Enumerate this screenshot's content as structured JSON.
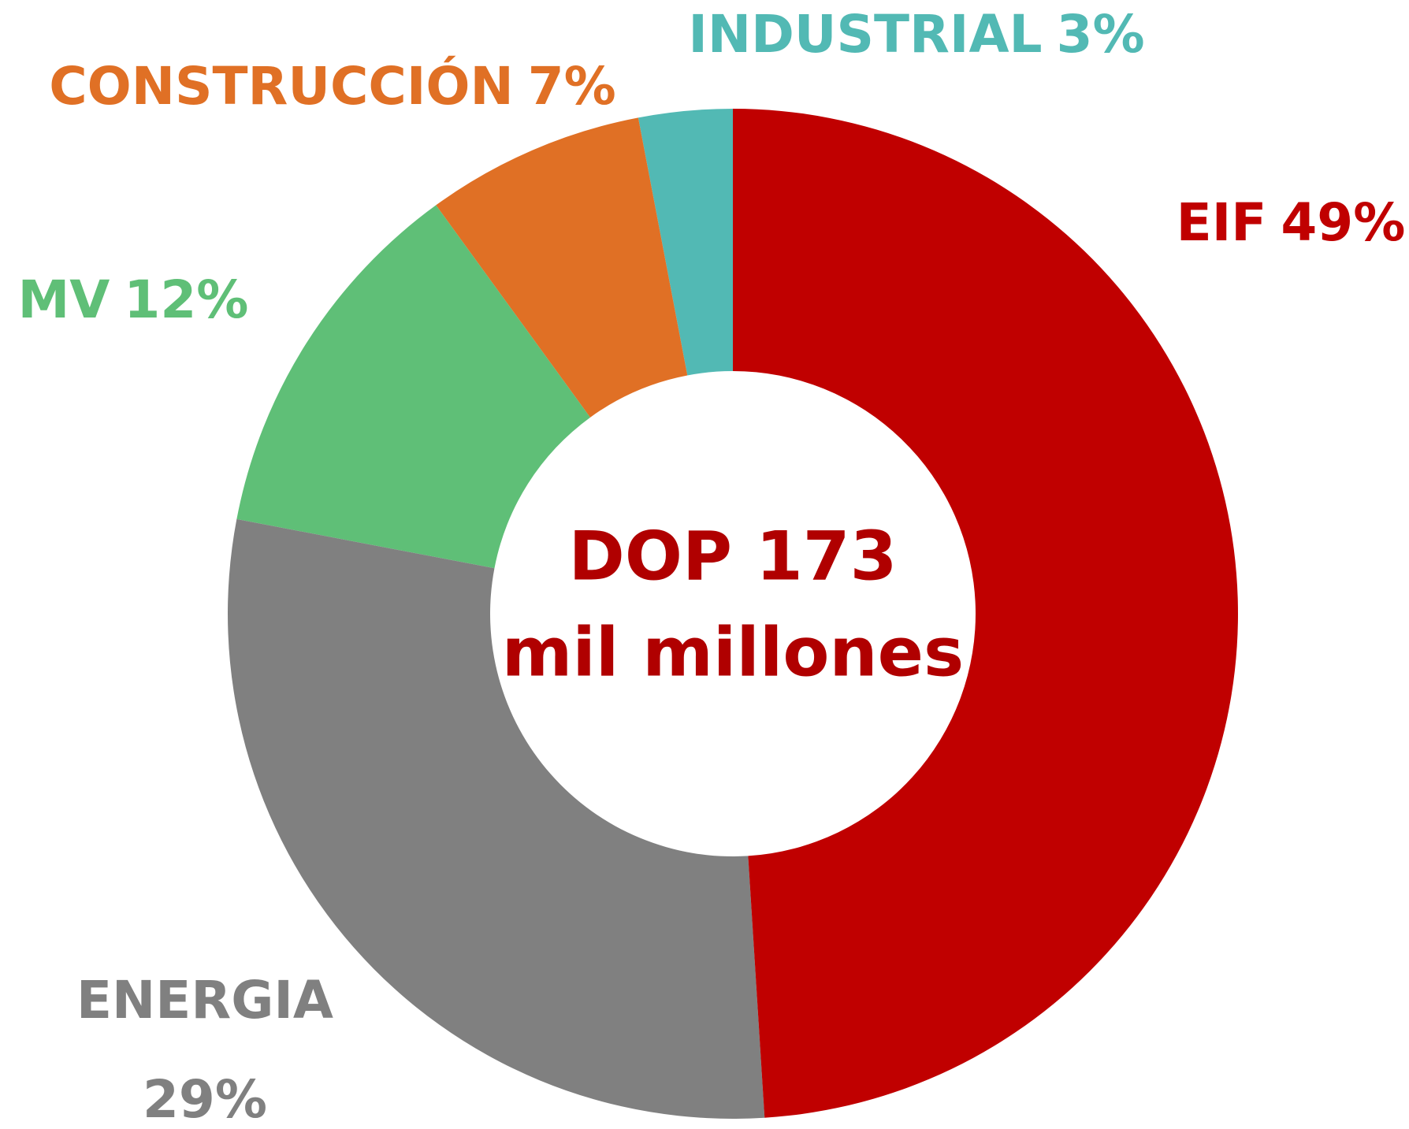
{
  "chart_data": {
    "type": "donut",
    "categories": [
      "EIF",
      "ENERGIA",
      "MV",
      "CONSTRUCCIÓN",
      "INDUSTRIAL"
    ],
    "values": [
      49,
      29,
      12,
      7,
      3
    ],
    "value_labels": [
      "49%",
      "29%",
      "12%",
      "7%",
      "3%"
    ],
    "colors": [
      "#c00000",
      "#808080",
      "#5fbf77",
      "#e07025",
      "#52b9b4"
    ],
    "center_label": [
      "DOP 173",
      "mil millones"
    ],
    "center_color": "#b00000"
  }
}
